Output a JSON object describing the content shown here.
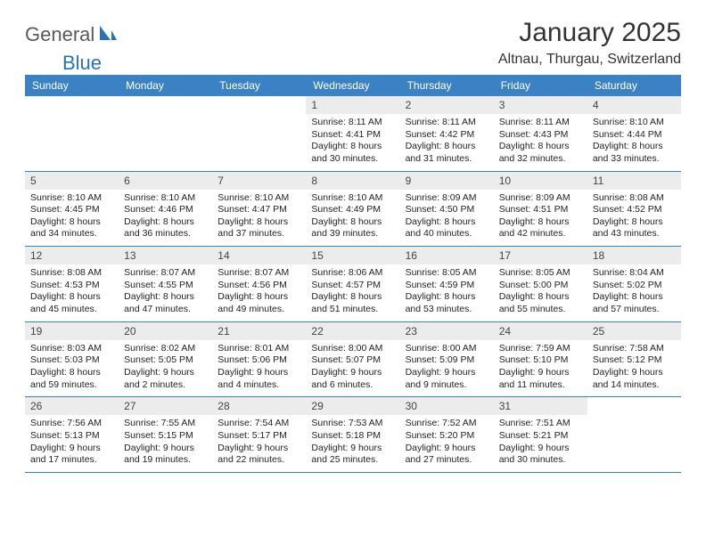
{
  "logo": {
    "text1": "General",
    "text2": "Blue"
  },
  "title": "January 2025",
  "location": "Altnau, Thurgau, Switzerland",
  "colors": {
    "header_bg": "#3a82c4",
    "header_text": "#ffffff",
    "daynum_bg": "#ececec",
    "border": "#3a82c4",
    "logo_blue": "#2a72b5",
    "logo_gray": "#5a5a5a"
  },
  "day_headers": [
    "Sunday",
    "Monday",
    "Tuesday",
    "Wednesday",
    "Thursday",
    "Friday",
    "Saturday"
  ],
  "weeks": [
    [
      {
        "day": null
      },
      {
        "day": null
      },
      {
        "day": null
      },
      {
        "day": "1",
        "sunrise": "8:11 AM",
        "sunset": "4:41 PM",
        "daylight": "8 hours and 30 minutes."
      },
      {
        "day": "2",
        "sunrise": "8:11 AM",
        "sunset": "4:42 PM",
        "daylight": "8 hours and 31 minutes."
      },
      {
        "day": "3",
        "sunrise": "8:11 AM",
        "sunset": "4:43 PM",
        "daylight": "8 hours and 32 minutes."
      },
      {
        "day": "4",
        "sunrise": "8:10 AM",
        "sunset": "4:44 PM",
        "daylight": "8 hours and 33 minutes."
      }
    ],
    [
      {
        "day": "5",
        "sunrise": "8:10 AM",
        "sunset": "4:45 PM",
        "daylight": "8 hours and 34 minutes."
      },
      {
        "day": "6",
        "sunrise": "8:10 AM",
        "sunset": "4:46 PM",
        "daylight": "8 hours and 36 minutes."
      },
      {
        "day": "7",
        "sunrise": "8:10 AM",
        "sunset": "4:47 PM",
        "daylight": "8 hours and 37 minutes."
      },
      {
        "day": "8",
        "sunrise": "8:10 AM",
        "sunset": "4:49 PM",
        "daylight": "8 hours and 39 minutes."
      },
      {
        "day": "9",
        "sunrise": "8:09 AM",
        "sunset": "4:50 PM",
        "daylight": "8 hours and 40 minutes."
      },
      {
        "day": "10",
        "sunrise": "8:09 AM",
        "sunset": "4:51 PM",
        "daylight": "8 hours and 42 minutes."
      },
      {
        "day": "11",
        "sunrise": "8:08 AM",
        "sunset": "4:52 PM",
        "daylight": "8 hours and 43 minutes."
      }
    ],
    [
      {
        "day": "12",
        "sunrise": "8:08 AM",
        "sunset": "4:53 PM",
        "daylight": "8 hours and 45 minutes."
      },
      {
        "day": "13",
        "sunrise": "8:07 AM",
        "sunset": "4:55 PM",
        "daylight": "8 hours and 47 minutes."
      },
      {
        "day": "14",
        "sunrise": "8:07 AM",
        "sunset": "4:56 PM",
        "daylight": "8 hours and 49 minutes."
      },
      {
        "day": "15",
        "sunrise": "8:06 AM",
        "sunset": "4:57 PM",
        "daylight": "8 hours and 51 minutes."
      },
      {
        "day": "16",
        "sunrise": "8:05 AM",
        "sunset": "4:59 PM",
        "daylight": "8 hours and 53 minutes."
      },
      {
        "day": "17",
        "sunrise": "8:05 AM",
        "sunset": "5:00 PM",
        "daylight": "8 hours and 55 minutes."
      },
      {
        "day": "18",
        "sunrise": "8:04 AM",
        "sunset": "5:02 PM",
        "daylight": "8 hours and 57 minutes."
      }
    ],
    [
      {
        "day": "19",
        "sunrise": "8:03 AM",
        "sunset": "5:03 PM",
        "daylight": "8 hours and 59 minutes."
      },
      {
        "day": "20",
        "sunrise": "8:02 AM",
        "sunset": "5:05 PM",
        "daylight": "9 hours and 2 minutes."
      },
      {
        "day": "21",
        "sunrise": "8:01 AM",
        "sunset": "5:06 PM",
        "daylight": "9 hours and 4 minutes."
      },
      {
        "day": "22",
        "sunrise": "8:00 AM",
        "sunset": "5:07 PM",
        "daylight": "9 hours and 6 minutes."
      },
      {
        "day": "23",
        "sunrise": "8:00 AM",
        "sunset": "5:09 PM",
        "daylight": "9 hours and 9 minutes."
      },
      {
        "day": "24",
        "sunrise": "7:59 AM",
        "sunset": "5:10 PM",
        "daylight": "9 hours and 11 minutes."
      },
      {
        "day": "25",
        "sunrise": "7:58 AM",
        "sunset": "5:12 PM",
        "daylight": "9 hours and 14 minutes."
      }
    ],
    [
      {
        "day": "26",
        "sunrise": "7:56 AM",
        "sunset": "5:13 PM",
        "daylight": "9 hours and 17 minutes."
      },
      {
        "day": "27",
        "sunrise": "7:55 AM",
        "sunset": "5:15 PM",
        "daylight": "9 hours and 19 minutes."
      },
      {
        "day": "28",
        "sunrise": "7:54 AM",
        "sunset": "5:17 PM",
        "daylight": "9 hours and 22 minutes."
      },
      {
        "day": "29",
        "sunrise": "7:53 AM",
        "sunset": "5:18 PM",
        "daylight": "9 hours and 25 minutes."
      },
      {
        "day": "30",
        "sunrise": "7:52 AM",
        "sunset": "5:20 PM",
        "daylight": "9 hours and 27 minutes."
      },
      {
        "day": "31",
        "sunrise": "7:51 AM",
        "sunset": "5:21 PM",
        "daylight": "9 hours and 30 minutes."
      },
      {
        "day": null
      }
    ]
  ],
  "labels": {
    "sunrise": "Sunrise:",
    "sunset": "Sunset:",
    "daylight": "Daylight:"
  }
}
